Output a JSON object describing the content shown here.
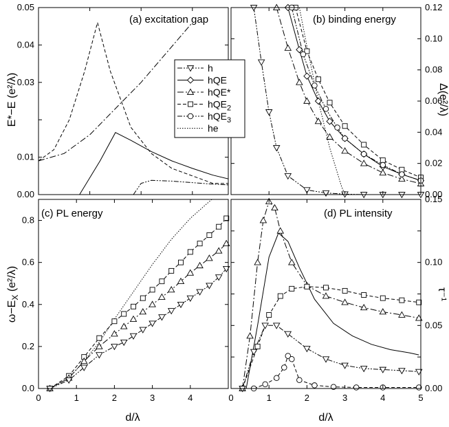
{
  "chart_data": [
    {
      "id": "a",
      "type": "line",
      "title": "(a) excitation gap",
      "ylabel": "E*−E (e²/λ)",
      "xlabel": "",
      "xlim": [
        0,
        3.7
      ],
      "ylim": [
        0,
        0.05
      ],
      "yticks": [
        "0.00",
        "0.01",
        "",
        "0.03",
        "0.04",
        "0.05"
      ],
      "series": [
        {
          "style": "dash-dot",
          "x": [
            0.0,
            0.5,
            1.0,
            1.5,
            2.0,
            2.5,
            3.0
          ],
          "y": [
            0.009,
            0.011,
            0.016,
            0.023,
            0.03,
            0.038,
            0.046
          ]
        },
        {
          "style": "dashed",
          "x": [
            0.0,
            0.3,
            0.6,
            0.9,
            1.15,
            1.4,
            1.8,
            2.2,
            2.6,
            3.0,
            3.4,
            3.7
          ],
          "y": [
            0.009,
            0.012,
            0.02,
            0.033,
            0.046,
            0.033,
            0.018,
            0.011,
            0.007,
            0.005,
            0.003,
            0.003
          ]
        },
        {
          "style": "solid",
          "x": [
            0.8,
            1.2,
            1.5,
            1.8,
            2.2,
            2.6,
            3.0,
            3.4,
            3.7
          ],
          "y": [
            0.0,
            0.009,
            0.0166,
            0.0145,
            0.0115,
            0.009,
            0.007,
            0.0052,
            0.0042
          ]
        },
        {
          "style": "dash-dot-dot",
          "x": [
            1.85,
            2.0,
            2.2,
            2.6,
            3.0,
            3.4,
            3.7
          ],
          "y": [
            0.0,
            0.003,
            0.0038,
            0.0036,
            0.0032,
            0.0028,
            0.0026
          ]
        }
      ]
    },
    {
      "id": "b",
      "type": "line",
      "title": "(b) binding energy",
      "ylabel": "Δ(e²/λ)",
      "xlabel": "",
      "xlim": [
        0,
        5
      ],
      "ylim": [
        0,
        0.12
      ],
      "yticks": [
        "0.00",
        "0.02",
        "0.04",
        "0.06",
        "0.08",
        "0.10",
        "0.12"
      ],
      "legend": {
        "position": "top-left",
        "entries": [
          {
            "label": "h",
            "style": "dash-dot-dot",
            "marker": "triangle-down"
          },
          {
            "label": "hQE",
            "style": "solid",
            "marker": "diamond"
          },
          {
            "label": "hQE*",
            "style": "dash-dot",
            "marker": "triangle-up"
          },
          {
            "label": "hQE",
            "sub": "2",
            "style": "dashed",
            "marker": "square"
          },
          {
            "label": "hQE",
            "sub": "3",
            "style": "dash-dot-dot",
            "marker": "circle"
          },
          {
            "label": "he",
            "style": "dotted",
            "marker": "none"
          }
        ]
      },
      "series": [
        {
          "name": "h",
          "style": "dash-dot-dot",
          "marker": "triangle-down",
          "x": [
            0.6,
            0.8,
            1.0,
            1.2,
            1.5,
            2.0,
            2.5,
            3.0,
            3.5,
            4.0,
            4.5,
            5.0
          ],
          "y": [
            0.12,
            0.085,
            0.053,
            0.03,
            0.012,
            0.003,
            0.001,
            0.0003,
            0.0,
            0.0,
            0.0,
            0.0
          ]
        },
        {
          "name": "hQE",
          "style": "solid",
          "marker": "diamond",
          "x": [
            1.5,
            1.8,
            2.0,
            2.3,
            2.6,
            3.0,
            3.5,
            4.0,
            4.5,
            5.0
          ],
          "y": [
            0.12,
            0.093,
            0.076,
            0.06,
            0.047,
            0.036,
            0.026,
            0.018,
            0.013,
            0.009
          ]
        },
        {
          "name": "hQE*",
          "style": "dash-dot",
          "marker": "triangle-up",
          "x": [
            1.2,
            1.5,
            1.8,
            2.0,
            2.3,
            2.6,
            3.0,
            3.5,
            4.0,
            4.5,
            5.0
          ],
          "y": [
            0.12,
            0.094,
            0.072,
            0.06,
            0.047,
            0.037,
            0.028,
            0.02,
            0.014,
            0.01,
            0.007
          ]
        },
        {
          "name": "hQE2",
          "style": "dashed",
          "marker": "square",
          "x": [
            1.7,
            2.0,
            2.3,
            2.6,
            3.0,
            3.5,
            4.0,
            4.5,
            5.0
          ],
          "y": [
            0.12,
            0.092,
            0.074,
            0.059,
            0.044,
            0.032,
            0.022,
            0.016,
            0.011
          ]
        },
        {
          "name": "hQE3",
          "style": "dash-dot-dot",
          "marker": "circle",
          "x": [
            1.6,
            1.9,
            2.2,
            2.5,
            2.8,
            3.0,
            3.5,
            4.0,
            4.5,
            5.0
          ],
          "y": [
            0.12,
            0.09,
            0.07,
            0.055,
            0.043,
            0.036,
            0.026,
            0.019,
            0.013,
            0.009
          ]
        },
        {
          "name": "he",
          "style": "dotted",
          "x": [
            1.8,
            2.0,
            2.3,
            2.6,
            2.9,
            3.0
          ],
          "y": [
            0.12,
            0.095,
            0.06,
            0.03,
            0.006,
            0.0
          ]
        }
      ]
    },
    {
      "id": "c",
      "type": "line",
      "title": "(c) PL energy",
      "ylabel": "ω−E",
      "ylabel_sub": "X",
      "ylabel_tail": " (e²/λ)",
      "xlabel": "d/λ",
      "xlim": [
        0,
        5
      ],
      "ylim": [
        0,
        0.9
      ],
      "xticks": [
        "0",
        "1",
        "2",
        "3",
        "4",
        ""
      ],
      "yticks": [
        "0.0",
        "0.2",
        "0.4",
        "0.6",
        "0.8"
      ],
      "series": [
        {
          "name": "he",
          "style": "dotted",
          "x": [
            0.3,
            0.8,
            1.2,
            1.6,
            2.0,
            2.5,
            3.0,
            3.5,
            4.0,
            4.5,
            4.7
          ],
          "y": [
            0.0,
            0.05,
            0.13,
            0.22,
            0.33,
            0.46,
            0.59,
            0.71,
            0.81,
            0.89,
            0.92
          ]
        },
        {
          "name": "hQE2",
          "style": "dashed",
          "marker": "square",
          "x": [
            0.3,
            0.8,
            1.2,
            1.6,
            2.0,
            2.25,
            2.5,
            2.75,
            3.0,
            3.25,
            3.5,
            3.75,
            4.0,
            4.25,
            4.5,
            4.75,
            4.95
          ],
          "y": [
            0.0,
            0.06,
            0.15,
            0.24,
            0.32,
            0.355,
            0.39,
            0.43,
            0.47,
            0.51,
            0.56,
            0.6,
            0.65,
            0.69,
            0.73,
            0.77,
            0.81
          ]
        },
        {
          "name": "hQE*",
          "style": "dash-dot",
          "marker": "triangle-up",
          "x": [
            0.3,
            0.8,
            1.2,
            1.6,
            2.0,
            2.25,
            2.5,
            2.75,
            3.0,
            3.25,
            3.5,
            3.75,
            4.0,
            4.25,
            4.5,
            4.75,
            4.95
          ],
          "y": [
            0.0,
            0.05,
            0.13,
            0.2,
            0.26,
            0.295,
            0.33,
            0.365,
            0.4,
            0.435,
            0.47,
            0.51,
            0.55,
            0.585,
            0.62,
            0.655,
            0.69
          ]
        },
        {
          "name": "h",
          "style": "dash-dot-dot",
          "marker": "triangle-down",
          "x": [
            0.3,
            0.8,
            1.2,
            1.6,
            2.0,
            2.25,
            2.5,
            2.75,
            3.0,
            3.25,
            3.5,
            3.75,
            4.0,
            4.25,
            4.5,
            4.75,
            4.95
          ],
          "y": [
            0.0,
            0.04,
            0.1,
            0.16,
            0.2,
            0.22,
            0.25,
            0.28,
            0.31,
            0.34,
            0.37,
            0.4,
            0.43,
            0.46,
            0.49,
            0.53,
            0.57
          ]
        }
      ]
    },
    {
      "id": "d",
      "type": "line",
      "title": "(d) PL intensity",
      "ylabel": "τ⁻¹",
      "xlabel": "d/λ",
      "xlim": [
        0,
        5
      ],
      "ylim": [
        0,
        0.18
      ],
      "xticks": [
        "0",
        "1",
        "2",
        "3",
        "4",
        "5"
      ],
      "yticks": [
        "0.00",
        "",
        "0.05",
        "",
        "0.10",
        "",
        "0.15"
      ],
      "series": [
        {
          "name": "hQE*",
          "style": "dash-dot",
          "marker": "triangle-up",
          "x": [
            0.3,
            0.5,
            0.7,
            0.85,
            1.0,
            1.15,
            1.3,
            1.6,
            2.0,
            2.5,
            3.0,
            3.5,
            4.0,
            4.5,
            4.95
          ],
          "y": [
            0.0,
            0.05,
            0.12,
            0.16,
            0.178,
            0.172,
            0.15,
            0.12,
            0.098,
            0.088,
            0.082,
            0.077,
            0.073,
            0.07,
            0.067
          ]
        },
        {
          "name": "hQE",
          "style": "solid",
          "x": [
            0.4,
            0.7,
            1.0,
            1.25,
            1.5,
            1.8,
            2.2,
            2.7,
            3.2,
            3.7,
            4.2,
            4.7,
            4.95
          ],
          "y": [
            0.0,
            0.06,
            0.125,
            0.148,
            0.14,
            0.115,
            0.085,
            0.062,
            0.05,
            0.042,
            0.037,
            0.034,
            0.032
          ]
        },
        {
          "name": "hQE2",
          "style": "dashed",
          "marker": "square",
          "x": [
            0.3,
            0.7,
            1.0,
            1.3,
            1.6,
            2.0,
            2.5,
            3.0,
            3.5,
            4.0,
            4.5,
            4.95
          ],
          "y": [
            0.0,
            0.04,
            0.07,
            0.088,
            0.095,
            0.097,
            0.096,
            0.093,
            0.089,
            0.086,
            0.084,
            0.082
          ]
        },
        {
          "name": "h",
          "style": "dash-dot-dot",
          "marker": "triangle-down",
          "x": [
            0.3,
            0.6,
            0.9,
            1.2,
            1.5,
            2.0,
            2.5,
            3.0,
            3.5,
            4.0,
            4.5,
            4.95
          ],
          "y": [
            0.0,
            0.035,
            0.06,
            0.06,
            0.052,
            0.038,
            0.028,
            0.022,
            0.019,
            0.018,
            0.017,
            0.016
          ]
        },
        {
          "name": "hQE3",
          "style": "dashed",
          "marker": "circle",
          "x": [
            0.6,
            0.9,
            1.2,
            1.4,
            1.5,
            1.6,
            1.8,
            2.2,
            2.7,
            3.3,
            4.0,
            4.95
          ],
          "y": [
            0.0,
            0.004,
            0.01,
            0.02,
            0.031,
            0.028,
            0.008,
            0.003,
            0.0015,
            0.001,
            0.001,
            0.001
          ]
        }
      ]
    }
  ]
}
